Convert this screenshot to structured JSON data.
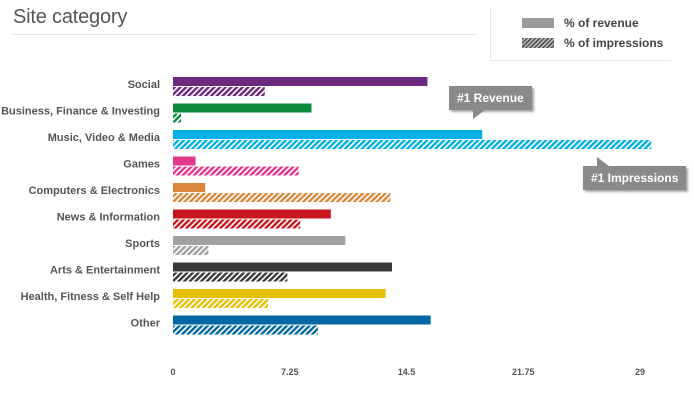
{
  "title": "Site category",
  "legend": {
    "revenue_label": "% of revenue",
    "impressions_label": "% of impressions"
  },
  "callouts": {
    "revenue": "#1 Revenue",
    "impressions": "#1 Impressions"
  },
  "chart_data": {
    "type": "bar",
    "orientation": "horizontal",
    "title": "Site category",
    "categories": [
      "Social",
      "Business, Finance & Investing",
      "Music, Video & Media",
      "Games",
      "Computers & Electronics",
      "News & Information",
      "Sports",
      "Arts & Entertainment",
      "Health, Fitness & Self Help",
      "Other"
    ],
    "colors": [
      "#6b2a7e",
      "#0a8c3c",
      "#00aee8",
      "#e0388a",
      "#d9873d",
      "#c8141e",
      "#a0a0a0",
      "#3a3a3a",
      "#e6bf00",
      "#0067a3"
    ],
    "series": [
      {
        "name": "% of revenue",
        "style": "solid",
        "values": [
          15.8,
          8.6,
          19.2,
          1.4,
          2.0,
          9.8,
          10.7,
          13.6,
          13.2,
          16.0
        ]
      },
      {
        "name": "% of impressions",
        "style": "hatched",
        "values": [
          5.7,
          0.5,
          29.7,
          7.8,
          13.5,
          7.9,
          2.2,
          7.1,
          5.9,
          9.0
        ]
      }
    ],
    "xlim": [
      0,
      31
    ],
    "xticks": [
      "0",
      "7.25",
      "14.5",
      "21.75",
      "29"
    ],
    "grid": false,
    "legend_position": "top-right"
  }
}
